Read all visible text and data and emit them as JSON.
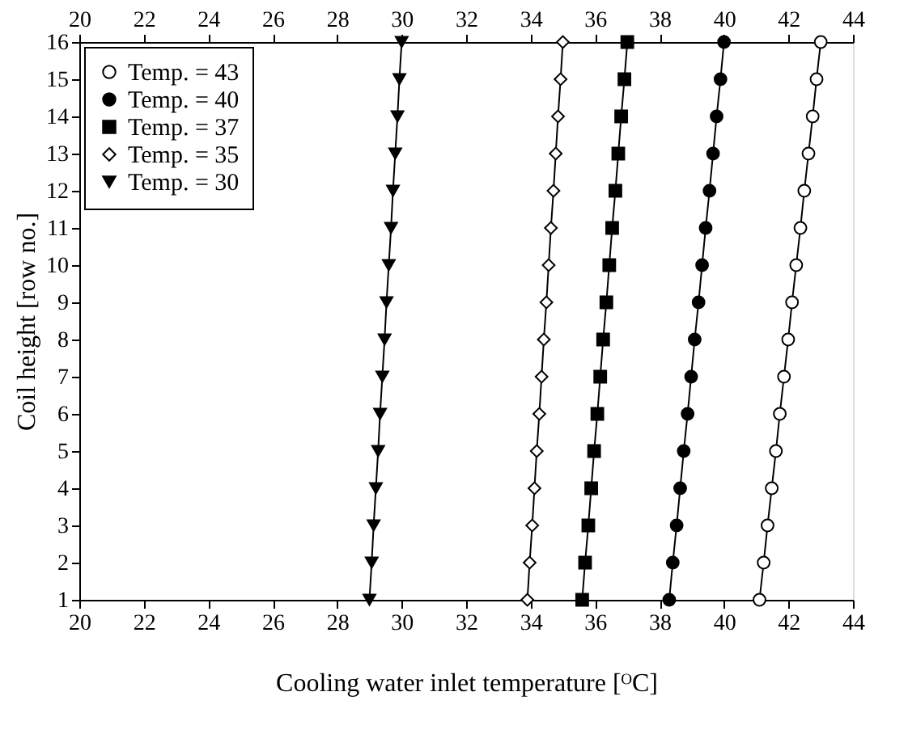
{
  "chart_data": {
    "type": "line",
    "xlabel": "Cooling water inlet temperature [ᴼC]",
    "ylabel": "Coil height [row no.]",
    "xlim": [
      20,
      44
    ],
    "xticks": [
      20,
      22,
      24,
      26,
      28,
      30,
      32,
      34,
      36,
      38,
      40,
      42,
      44
    ],
    "x2lim": [
      20,
      44
    ],
    "x2ticks": [
      20,
      22,
      24,
      26,
      28,
      30,
      32,
      34,
      36,
      38,
      40,
      42,
      44
    ],
    "ylim": [
      1,
      16
    ],
    "yticks": [
      1,
      2,
      3,
      4,
      5,
      6,
      7,
      8,
      9,
      10,
      11,
      12,
      13,
      14,
      15,
      16
    ],
    "grid": false,
    "legend": "top left",
    "line_style": "solid",
    "series": [
      {
        "name": "Temp. = 43",
        "color": "#ffffff",
        "marker": "circle",
        "x": [
          41.1,
          41.23,
          41.35,
          41.48,
          41.61,
          41.73,
          41.86,
          41.99,
          42.11,
          42.24,
          42.37,
          42.49,
          42.62,
          42.75,
          42.87,
          43.0
        ],
        "values": [
          1,
          2,
          3,
          4,
          5,
          6,
          7,
          8,
          9,
          10,
          11,
          12,
          13,
          14,
          15,
          16
        ]
      },
      {
        "name": "Temp. = 40",
        "color": "#000000",
        "marker": "circle",
        "x": [
          38.3,
          38.41,
          38.53,
          38.64,
          38.75,
          38.87,
          38.98,
          39.09,
          39.21,
          39.32,
          39.43,
          39.55,
          39.66,
          39.77,
          39.89,
          40.0
        ],
        "values": [
          1,
          2,
          3,
          4,
          5,
          6,
          7,
          8,
          9,
          10,
          11,
          12,
          13,
          14,
          15,
          16
        ]
      },
      {
        "name": "Temp. = 37",
        "color": "#000000",
        "marker": "square",
        "x": [
          35.6,
          35.69,
          35.79,
          35.88,
          35.97,
          36.07,
          36.16,
          36.25,
          36.35,
          36.44,
          36.53,
          36.63,
          36.72,
          36.81,
          36.91,
          37.0
        ],
        "values": [
          1,
          2,
          3,
          4,
          5,
          6,
          7,
          8,
          9,
          10,
          11,
          12,
          13,
          14,
          15,
          16
        ]
      },
      {
        "name": "Temp. = 35",
        "color": "#ffffff",
        "marker": "diamond",
        "x": [
          33.9,
          33.97,
          34.05,
          34.12,
          34.19,
          34.27,
          34.34,
          34.41,
          34.49,
          34.56,
          34.63,
          34.71,
          34.78,
          34.85,
          34.93,
          35.0
        ],
        "values": [
          1,
          2,
          3,
          4,
          5,
          6,
          7,
          8,
          9,
          10,
          11,
          12,
          13,
          14,
          15,
          16
        ]
      },
      {
        "name": "Temp. = 30",
        "color": "#000000",
        "marker": "triangle",
        "x": [
          29.0,
          29.07,
          29.13,
          29.2,
          29.27,
          29.33,
          29.4,
          29.47,
          29.53,
          29.6,
          29.67,
          29.73,
          29.8,
          29.87,
          29.93,
          30.0
        ],
        "values": [
          1,
          2,
          3,
          4,
          5,
          6,
          7,
          8,
          9,
          10,
          11,
          12,
          13,
          14,
          15,
          16
        ]
      }
    ]
  }
}
